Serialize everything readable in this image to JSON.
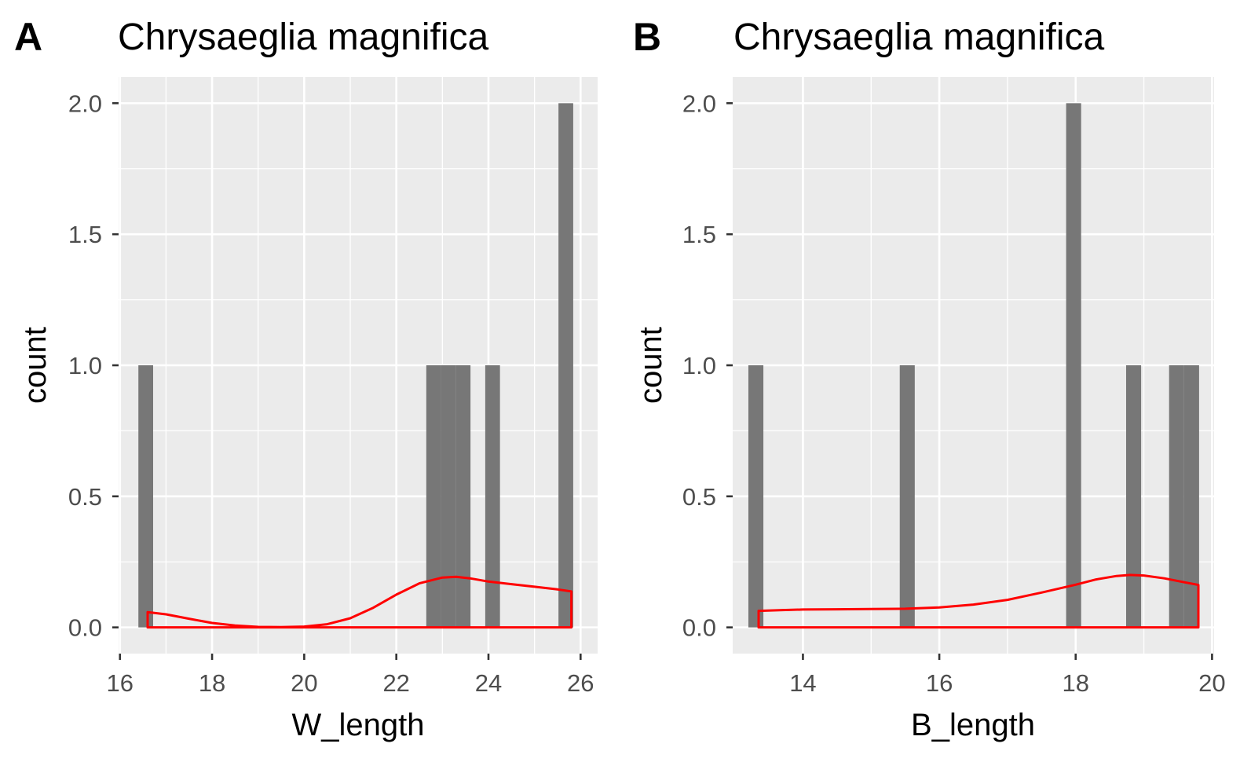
{
  "chart_data": [
    {
      "type": "bar",
      "panel_label": "A",
      "title": "Chrysaeglia magnifica",
      "xlabel": "W_length",
      "ylabel": "count",
      "xlim": [
        15.97,
        26.37
      ],
      "ylim": [
        -0.1,
        2.1
      ],
      "xticks": [
        16,
        18,
        20,
        22,
        24,
        26
      ],
      "xtick_labels": [
        "16",
        "18",
        "20",
        "22",
        "24",
        "26"
      ],
      "yticks": [
        0,
        0.5,
        1,
        1.5,
        2
      ],
      "ytick_labels": [
        "0.0",
        "0.5",
        "1.0",
        "1.5",
        "2.0"
      ],
      "grid": true,
      "bars": [
        {
          "x0": 16.4,
          "x1": 16.72,
          "count": 1
        },
        {
          "x0": 22.65,
          "x1": 22.97,
          "count": 1
        },
        {
          "x0": 22.97,
          "x1": 23.29,
          "count": 1
        },
        {
          "x0": 23.29,
          "x1": 23.61,
          "count": 1
        },
        {
          "x0": 23.93,
          "x1": 24.25,
          "count": 1
        },
        {
          "x0": 25.52,
          "x1": 25.84,
          "count": 2
        }
      ],
      "density": {
        "color": "#ff0000",
        "x": [
          16.6,
          17.0,
          17.5,
          18.0,
          18.5,
          19.0,
          19.5,
          20.0,
          20.5,
          21.0,
          21.5,
          22.0,
          22.5,
          23.0,
          23.3,
          23.6,
          24.0,
          24.5,
          25.0,
          25.5,
          25.8
        ],
        "y": [
          0.058,
          0.05,
          0.033,
          0.017,
          0.007,
          0.002,
          0.001,
          0.003,
          0.012,
          0.035,
          0.075,
          0.125,
          0.168,
          0.19,
          0.193,
          0.187,
          0.175,
          0.165,
          0.155,
          0.145,
          0.137
        ]
      }
    },
    {
      "type": "bar",
      "panel_label": "B",
      "title": "Chrysaeglia magnifica",
      "xlabel": "B_length",
      "ylabel": "count",
      "xlim": [
        12.97,
        20.03
      ],
      "ylim": [
        -0.1,
        2.1
      ],
      "xticks": [
        14,
        16,
        18,
        20
      ],
      "xtick_labels": [
        "14",
        "16",
        "18",
        "20"
      ],
      "yticks": [
        0,
        0.5,
        1,
        1.5,
        2
      ],
      "ytick_labels": [
        "0.0",
        "0.5",
        "1.0",
        "1.5",
        "2.0"
      ],
      "grid": true,
      "bars": [
        {
          "x0": 13.2,
          "x1": 13.42,
          "count": 1
        },
        {
          "x0": 15.42,
          "x1": 15.64,
          "count": 1
        },
        {
          "x0": 17.86,
          "x1": 18.08,
          "count": 2
        },
        {
          "x0": 18.74,
          "x1": 18.96,
          "count": 1
        },
        {
          "x0": 19.37,
          "x1": 19.59,
          "count": 1
        },
        {
          "x0": 19.59,
          "x1": 19.81,
          "count": 1
        }
      ],
      "density": {
        "color": "#ff0000",
        "x": [
          13.35,
          13.7,
          14.0,
          14.5,
          15.0,
          15.5,
          16.0,
          16.5,
          17.0,
          17.5,
          18.0,
          18.3,
          18.6,
          18.8,
          19.0,
          19.3,
          19.6,
          19.8
        ],
        "y": [
          0.063,
          0.066,
          0.068,
          0.069,
          0.07,
          0.071,
          0.076,
          0.087,
          0.105,
          0.133,
          0.163,
          0.183,
          0.196,
          0.2,
          0.198,
          0.187,
          0.172,
          0.162
        ]
      }
    }
  ]
}
